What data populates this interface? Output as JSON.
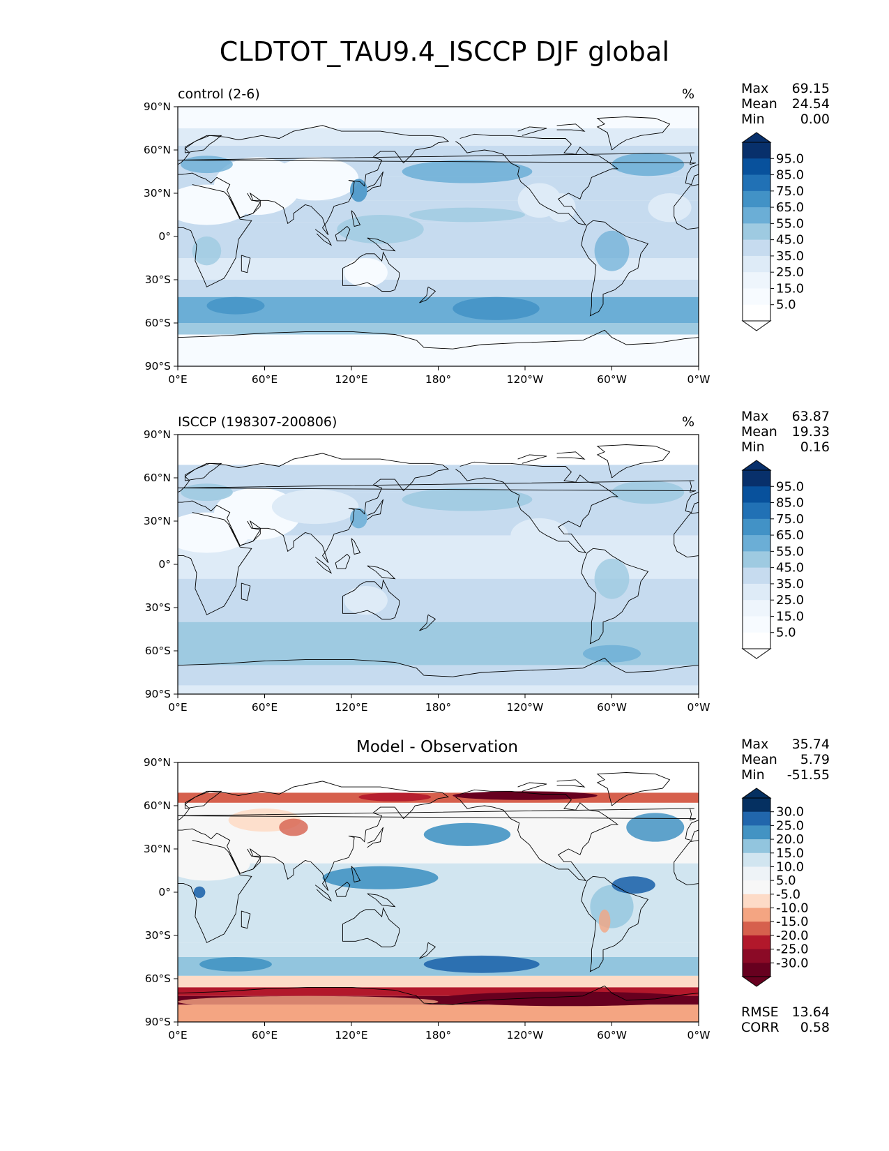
{
  "title": "CLDTOT_TAU9.4_ISCCP DJF global",
  "panels": [
    {
      "label": "control (2-6)",
      "units": "%",
      "stats": {
        "max_label": "Max",
        "max": "69.15",
        "mean_label": "Mean",
        "mean": "24.54",
        "min_label": "Min",
        "min": "0.00"
      },
      "colorbar": {
        "labels": [
          "95.0",
          "85.0",
          "75.0",
          "65.0",
          "55.0",
          "45.0",
          "35.0",
          "25.0",
          "15.0",
          "5.0"
        ]
      }
    },
    {
      "label": "ISCCP (198307-200806)",
      "units": "%",
      "stats": {
        "max_label": "Max",
        "max": "63.87",
        "mean_label": "Mean",
        "mean": "19.33",
        "min_label": "Min",
        "min": "0.16"
      },
      "colorbar": {
        "labels": [
          "95.0",
          "85.0",
          "75.0",
          "65.0",
          "55.0",
          "45.0",
          "35.0",
          "25.0",
          "15.0",
          "5.0"
        ]
      }
    },
    {
      "center_title": "Model - Observation",
      "stats": {
        "max_label": "Max",
        "max": "35.74",
        "mean_label": "Mean",
        "mean": "5.79",
        "min_label": "Min",
        "min": "-51.55"
      },
      "colorbar": {
        "labels": [
          "30.0",
          "25.0",
          "20.0",
          "15.0",
          "10.0",
          "5.0",
          "-5.0",
          "-10.0",
          "-15.0",
          "-20.0",
          "-25.0",
          "-30.0"
        ]
      },
      "metrics": {
        "rmse_label": "RMSE",
        "rmse": "13.64",
        "corr_label": "CORR",
        "corr": "0.58"
      }
    }
  ],
  "axes": {
    "lat_ticks": [
      "90°N",
      "60°N",
      "30°N",
      "0°",
      "30°S",
      "60°S",
      "90°S"
    ],
    "lon_ticks": [
      "0°E",
      "60°E",
      "120°E",
      "180°",
      "120°W",
      "60°W",
      "0°W"
    ]
  },
  "colors": {
    "seq_blues": [
      "#f7fbff",
      "#deebf7",
      "#c6dbef",
      "#9ecae1",
      "#6baed6",
      "#4292c6",
      "#2171b5",
      "#08519c",
      "#08306b"
    ],
    "diverging": [
      "#67001f",
      "#b2182b",
      "#d6604d",
      "#f4a582",
      "#fddbc7",
      "#f7f7f7",
      "#d1e5f0",
      "#92c5de",
      "#4393c3",
      "#2166ac",
      "#053061"
    ]
  }
}
